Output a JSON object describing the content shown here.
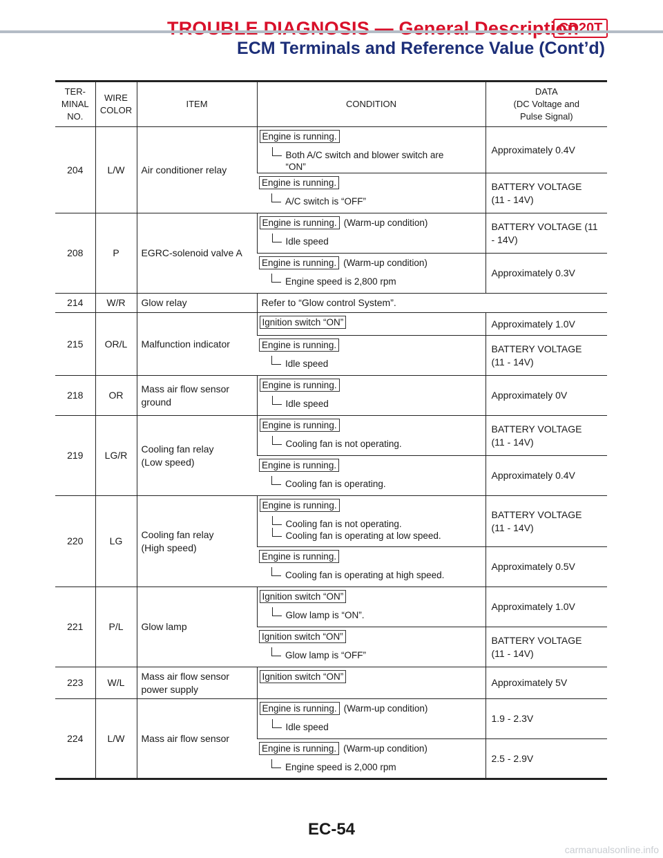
{
  "header": {
    "title": "TROUBLE DIAGNOSIS — General Description",
    "badge": "CD20T",
    "subtitle": "ECM Terminals and Reference Value (Cont’d)"
  },
  "table": {
    "columns": {
      "terminal": "TER-\nMINAL\nNO.",
      "wire_color": "WIRE\nCOLOR",
      "item": "ITEM",
      "condition": "CONDITION",
      "data": "DATA\n(DC Voltage and\nPulse Signal)"
    },
    "rows": [
      {
        "no": "204",
        "color": "L/W",
        "item": "Air conditioner relay",
        "conditions": [
          {
            "tag": "Engine is running.",
            "extra": "",
            "sub": [
              "Both A/C switch and blower switch are\n“ON”"
            ],
            "data": "Approximately 0.4V",
            "h": 58
          },
          {
            "tag": "Engine is running.",
            "extra": "",
            "sub": [
              "A/C switch is “OFF”"
            ],
            "data": "BATTERY VOLTAGE\n(11 - 14V)",
            "h": 58
          }
        ]
      },
      {
        "no": "208",
        "color": "P",
        "item": "EGRC-solenoid valve A",
        "conditions": [
          {
            "tag": "Engine is running.",
            "extra": "(Warm-up condition)",
            "sub": [
              "Idle speed"
            ],
            "data": "BATTERY VOLTAGE (11\n- 14V)",
            "h": 58
          },
          {
            "tag": "Engine is running.",
            "extra": "(Warm-up condition)",
            "sub": [
              "Engine speed is 2,800 rpm"
            ],
            "data": "Approximately 0.3V",
            "h": 58
          }
        ]
      },
      {
        "no": "214",
        "color": "W/R",
        "item": "Glow relay",
        "span_text": "Refer to “Glow control System”.",
        "h": 28
      },
      {
        "no": "215",
        "color": "OR/L",
        "item": "Malfunction indicator",
        "conditions": [
          {
            "tag": "Ignition switch “ON”",
            "extra": "",
            "sub": [],
            "data": "Approximately 1.0V",
            "h": 33
          },
          {
            "tag": "Engine is running.",
            "extra": "",
            "sub": [
              "Idle speed"
            ],
            "data": "BATTERY VOLTAGE\n(11 - 14V)",
            "h": 58
          }
        ]
      },
      {
        "no": "218",
        "color": "OR",
        "item": "Mass air flow sensor\nground",
        "conditions": [
          {
            "tag": "Engine is running.",
            "extra": "",
            "sub": [
              "Idle speed"
            ],
            "data": "Approximately 0V",
            "h": 58
          }
        ]
      },
      {
        "no": "219",
        "color": "LG/R",
        "item": "Cooling fan relay\n(Low speed)",
        "conditions": [
          {
            "tag": "Engine is running.",
            "extra": "",
            "sub": [
              "Cooling fan is not operating."
            ],
            "data": "BATTERY VOLTAGE\n(11 - 14V)",
            "h": 58
          },
          {
            "tag": "Engine is running.",
            "extra": "",
            "sub": [
              "Cooling fan is operating."
            ],
            "data": "Approximately 0.4V",
            "h": 58
          }
        ]
      },
      {
        "no": "220",
        "color": "LG",
        "item": "Cooling fan relay\n(High speed)",
        "conditions": [
          {
            "tag": "Engine is running.",
            "extra": "",
            "sub": [
              "Cooling fan is not operating.",
              "Cooling fan is operating at low speed."
            ],
            "data": "BATTERY VOLTAGE\n(11 - 14V)",
            "h": 74
          },
          {
            "tag": "Engine is running.",
            "extra": "",
            "sub": [
              "Cooling fan is operating at high speed."
            ],
            "data": "Approximately 0.5V",
            "h": 58
          }
        ]
      },
      {
        "no": "221",
        "color": "P/L",
        "item": "Glow lamp",
        "conditions": [
          {
            "tag": "Ignition switch “ON”",
            "extra": "",
            "sub": [
              "Glow lamp is “ON”."
            ],
            "data": "Approximately 1.0V",
            "h": 58
          },
          {
            "tag": "Ignition switch “ON”",
            "extra": "",
            "sub": [
              "Glow lamp is “OFF”"
            ],
            "data": "BATTERY VOLTAGE\n(11 - 14V)",
            "h": 58
          }
        ]
      },
      {
        "no": "223",
        "color": "W/L",
        "item": "Mass air flow sensor\npower supply",
        "conditions": [
          {
            "tag": "Ignition switch “ON”",
            "extra": "",
            "sub": [],
            "data": "Approximately 5V",
            "h": 46
          }
        ]
      },
      {
        "no": "224",
        "color": "L/W",
        "item": "Mass air flow sensor",
        "conditions": [
          {
            "tag": "Engine is running.",
            "extra": "(Warm-up condition)",
            "sub": [
              "Idle speed"
            ],
            "data": "1.9 - 2.3V",
            "h": 58
          },
          {
            "tag": "Engine is running.",
            "extra": "(Warm-up condition)",
            "sub": [
              "Engine speed is 2,000 rpm"
            ],
            "data": "2.5 - 2.9V",
            "h": 58
          }
        ]
      }
    ]
  },
  "footer": {
    "page": "EC-54",
    "watermark": "carmanualsonline.info"
  }
}
